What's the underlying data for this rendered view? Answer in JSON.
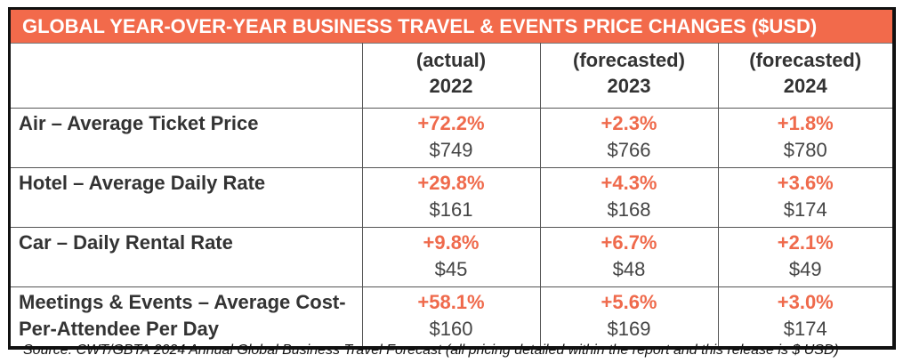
{
  "title": "GLOBAL YEAR-OVER-YEAR BUSINESS TRAVEL & EVENTS PRICE CHANGES ($USD)",
  "colors": {
    "header_bg": "#f26a4b",
    "percent_text": "#ef6a4c"
  },
  "columns": [
    {
      "type": "(actual)",
      "year": "2022"
    },
    {
      "type": "(forecasted)",
      "year": "2023"
    },
    {
      "type": "(forecasted)",
      "year": "2024"
    }
  ],
  "rows": [
    {
      "label": "Air – Average Ticket Price",
      "cells": [
        {
          "pct": "+72.2%",
          "price": "$749"
        },
        {
          "pct": "+2.3%",
          "price": "$766"
        },
        {
          "pct": "+1.8%",
          "price": "$780"
        }
      ]
    },
    {
      "label": "Hotel – Average Daily Rate",
      "cells": [
        {
          "pct": "+29.8%",
          "price": "$161"
        },
        {
          "pct": "+4.3%",
          "price": "$168"
        },
        {
          "pct": "+3.6%",
          "price": "$174"
        }
      ]
    },
    {
      "label": "Car – Daily Rental Rate",
      "cells": [
        {
          "pct": "+9.8%",
          "price": "$45"
        },
        {
          "pct": "+6.7%",
          "price": "$48"
        },
        {
          "pct": "+2.1%",
          "price": "$49"
        }
      ]
    },
    {
      "label": "Meetings & Events – Average Cost-Per-Attendee Per Day",
      "cells": [
        {
          "pct": "+58.1%",
          "price": "$160"
        },
        {
          "pct": "+5.6%",
          "price": "$169"
        },
        {
          "pct": "+3.0%",
          "price": "$174"
        }
      ]
    }
  ],
  "source": "Source: CWT/GBTA 2024 Annual Global Business Travel Forecast (all pricing detailed within the report and this release is $ USD)"
}
